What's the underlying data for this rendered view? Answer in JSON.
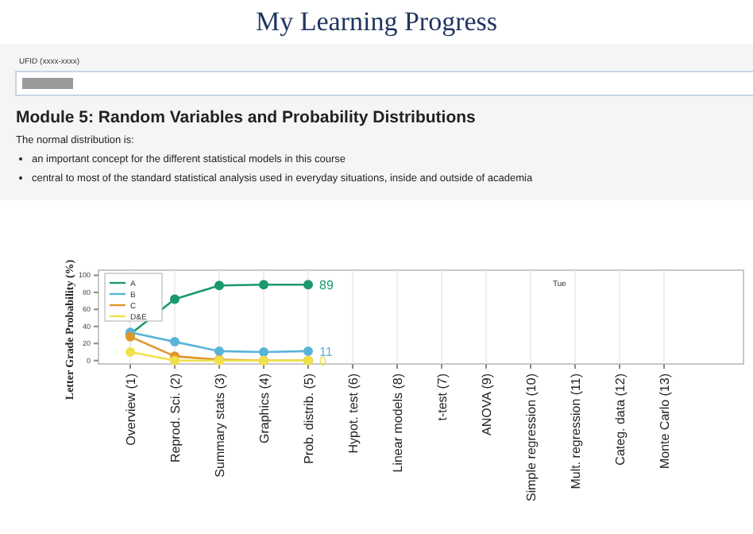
{
  "chart_data": {
    "type": "line",
    "title": "My Learning Progress",
    "subtitle": "Module 5: Random Variables and Probability Distributions",
    "ylabel": "Letter Grade Probability (%)",
    "annotations": [
      "UFID (xxxx-xxxx)",
      "The normal distribution is:",
      "an important concept for the different statistical models in this course",
      "central to most of the standard statistical analysis used in everyday situations, inside and outside of academia",
      "Tue"
    ],
    "categories": [
      "Overview (1)",
      "Reprod. Sci. (2)",
      "Summary stats (3)",
      "Graphics (4)",
      "Prob. distrib. (5)",
      "Hypot. test (6)",
      "Linear models (8)",
      "t-test (7)",
      "ANOVA (9)",
      "Simple regression (10)",
      "Mult. regression (11)",
      "Categ. data (12)",
      "Monte  Carlo (13)"
    ],
    "series": [
      {
        "name": "A",
        "color": "#1a9a6c",
        "values": [
          31,
          72,
          88,
          89,
          89,
          null,
          null,
          null,
          null,
          null,
          null,
          null,
          null
        ],
        "value_labels": [
          null,
          null,
          null,
          null,
          "89",
          null,
          null,
          null,
          null,
          null,
          null,
          null,
          null
        ]
      },
      {
        "name": "B",
        "color": "#5ab4d8",
        "values": [
          33,
          22,
          11,
          10,
          11,
          null,
          null,
          null,
          null,
          null,
          null,
          null,
          null
        ],
        "value_labels": [
          null,
          null,
          null,
          null,
          "11",
          null,
          null,
          null,
          null,
          null,
          null,
          null,
          null
        ]
      },
      {
        "name": "C",
        "color": "#e0962a",
        "values": [
          28,
          5,
          1,
          0,
          0,
          null,
          null,
          null,
          null,
          null,
          null,
          null,
          null
        ]
      },
      {
        "name": "D&E",
        "color": "#f0e04a",
        "values": [
          10,
          0,
          0,
          0,
          0,
          null,
          null,
          null,
          null,
          null,
          null,
          null,
          null
        ],
        "value_labels": [
          null,
          null,
          null,
          null,
          "0",
          null,
          null,
          null,
          null,
          null,
          null,
          null,
          null
        ]
      }
    ],
    "ylim": [
      -4,
      106
    ],
    "yticks": [
      0,
      20,
      40,
      60,
      80,
      100
    ],
    "grid": "x",
    "legend": "top left",
    "marker": "circle",
    "line_style": "solid"
  }
}
